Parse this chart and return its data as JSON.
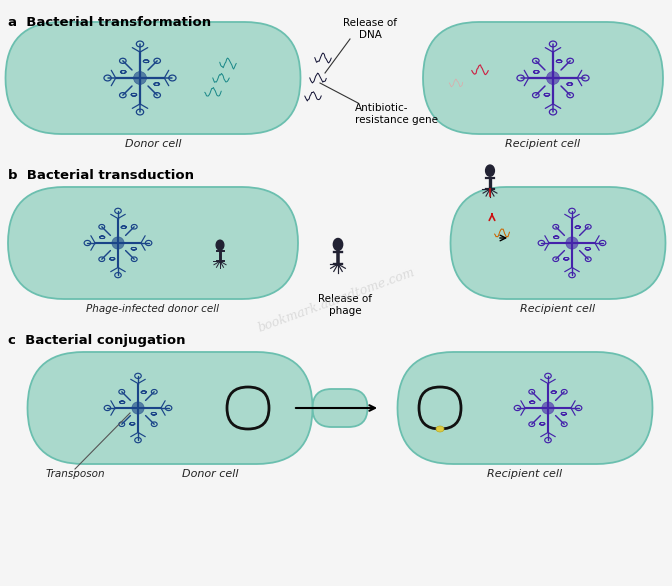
{
  "bg_color": "#f5f5f5",
  "cell_fill": "#aad9cc",
  "cell_edge": "#6bbfaf",
  "cell_fill_light": "#c5e8e0",
  "chromosome_blue": "#1a4488",
  "chromosome_cyan": "#1a8888",
  "chromosome_purple": "#4422aa",
  "chromosome_dark_purple": "#221155",
  "dna_red": "#cc2244",
  "dna_orange": "#cc6600",
  "dna_dark": "#111133",
  "phage_dark": "#222233",
  "phage_blue": "#334488",
  "line_color": "#333333",
  "label_color": "#222222",
  "title_a": "a  Bacterial transformation",
  "title_b": "b  Bacterial transduction",
  "title_c": "c  Bacterial conjugation",
  "label_donor": "Donor cell",
  "label_recipient": "Recipient cell",
  "label_phage_donor": "Phage-infected donor cell",
  "label_release_dna": "Release of\nDNA",
  "label_antibiotic": "Antibiotic-\nresistance gene",
  "label_release_phage": "Release of\nphage",
  "label_transposon": "Transposon",
  "label_donor_c": "Donor cell",
  "label_recipient_c": "Recipient cell",
  "watermark": "bookmark.aaradtome.com",
  "fig_width": 6.72,
  "fig_height": 5.86
}
